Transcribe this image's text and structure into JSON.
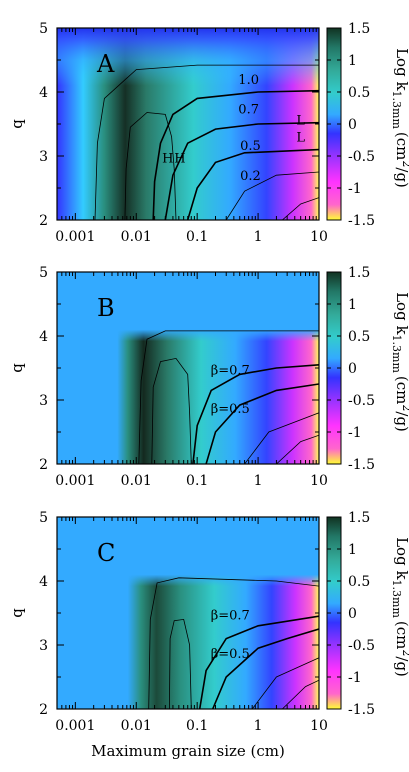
{
  "chart_data": {
    "type": "heatmap",
    "xlabel": "Maximum grain size (cm)",
    "x_scale": "log",
    "xlim": [
      0.0005,
      10
    ],
    "x_ticks": [
      0.001,
      0.01,
      0.1,
      1,
      10
    ],
    "x_tick_labels": [
      "0.001",
      "0.01",
      "0.1",
      "1",
      "10"
    ],
    "ylabel": "q",
    "ylim": [
      2,
      5
    ],
    "y_ticks": [
      2,
      3,
      4,
      5
    ],
    "y_tick_labels": [
      "2",
      "3",
      "4",
      "5"
    ],
    "colorbar": {
      "label_main": "Log k",
      "label_sub": "1.3mm",
      "label_unit": "(cm",
      "label_sup": "2",
      "label_end": "/g)",
      "range": [
        -1.5,
        1.5
      ],
      "ticks": [
        -1.5,
        -1,
        -0.5,
        0,
        0.5,
        1,
        1.5
      ],
      "tick_labels": [
        "-1.5",
        "-1",
        "-0.5",
        "0",
        "0.5",
        "1",
        "1.5"
      ],
      "colors": [
        "#ffff33",
        "#ff66cc",
        "#ff33ff",
        "#9933ff",
        "#3333ff",
        "#33ccff",
        "#33cccc",
        "#33aa99",
        "#227766",
        "#113322"
      ]
    },
    "panels": [
      {
        "label": "A",
        "contour_labels": [
          {
            "text": "1.0",
            "x": 0.7,
            "y": 4.18
          },
          {
            "text": "0.7",
            "x": 0.7,
            "y": 3.72
          },
          {
            "text": "0.5",
            "x": 0.75,
            "y": 3.15
          },
          {
            "text": "0.2",
            "x": 0.75,
            "y": 2.68
          },
          {
            "text": "L",
            "x": 5.0,
            "y": 3.55
          },
          {
            "text": "L",
            "x": 5.0,
            "y": 3.28
          },
          {
            "text": "H",
            "x": 0.033,
            "y": 2.95
          },
          {
            "text": "H",
            "x": 0.052,
            "y": 2.95
          }
        ]
      },
      {
        "label": "B",
        "contour_labels": [
          {
            "text": "β=0.7",
            "x": 0.35,
            "y": 3.45
          },
          {
            "text": "β=0.5",
            "x": 0.35,
            "y": 2.85
          }
        ]
      },
      {
        "label": "C",
        "contour_labels": [
          {
            "text": "β=0.7",
            "x": 0.35,
            "y": 3.45
          },
          {
            "text": "β=0.5",
            "x": 0.35,
            "y": 2.85
          }
        ]
      }
    ]
  }
}
